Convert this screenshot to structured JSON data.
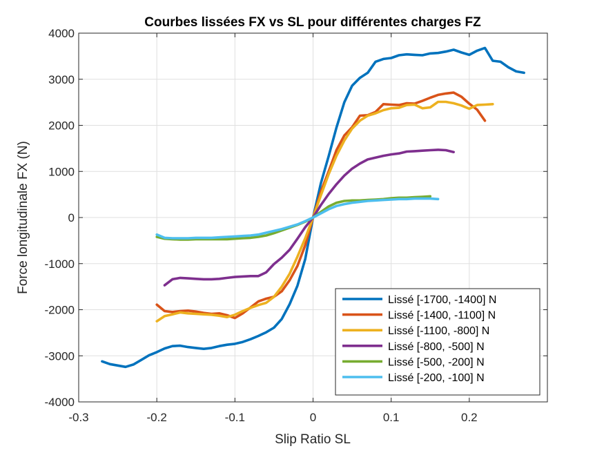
{
  "chart_data": {
    "type": "line",
    "title": "Courbes lissées FX vs SL pour différentes charges FZ",
    "xlabel": "Slip Ratio SL",
    "ylabel": "Force longitudinale FX (N)",
    "xlim": [
      -0.3,
      0.3
    ],
    "ylim": [
      -4000,
      4000
    ],
    "xticks": [
      -0.3,
      -0.2,
      -0.1,
      0,
      0.1,
      0.2
    ],
    "yticks": [
      -4000,
      -3000,
      -2000,
      -1000,
      0,
      1000,
      2000,
      3000,
      4000
    ],
    "xtick_labels": [
      "-0.3",
      "-0.2",
      "-0.1",
      "0",
      "0.1",
      "0.2"
    ],
    "ytick_labels": [
      "-4000",
      "-3000",
      "-2000",
      "-1000",
      "0",
      "1000",
      "2000",
      "3000",
      "4000"
    ],
    "grid": true,
    "legend_position": "bottom-right",
    "series": [
      {
        "name": "Lissé [-1700, -1400] N",
        "color": "#0072BD",
        "points": [
          [
            -0.27,
            -3120
          ],
          [
            -0.26,
            -3180
          ],
          [
            -0.25,
            -3210
          ],
          [
            -0.24,
            -3240
          ],
          [
            -0.23,
            -3190
          ],
          [
            -0.22,
            -3090
          ],
          [
            -0.21,
            -2990
          ],
          [
            -0.2,
            -2920
          ],
          [
            -0.19,
            -2840
          ],
          [
            -0.18,
            -2790
          ],
          [
            -0.17,
            -2780
          ],
          [
            -0.16,
            -2810
          ],
          [
            -0.15,
            -2830
          ],
          [
            -0.14,
            -2850
          ],
          [
            -0.13,
            -2830
          ],
          [
            -0.12,
            -2790
          ],
          [
            -0.11,
            -2760
          ],
          [
            -0.1,
            -2740
          ],
          [
            -0.09,
            -2700
          ],
          [
            -0.08,
            -2640
          ],
          [
            -0.07,
            -2570
          ],
          [
            -0.06,
            -2490
          ],
          [
            -0.05,
            -2390
          ],
          [
            -0.04,
            -2200
          ],
          [
            -0.03,
            -1880
          ],
          [
            -0.02,
            -1480
          ],
          [
            -0.01,
            -900
          ],
          [
            0,
            0
          ],
          [
            0.01,
            740
          ],
          [
            0.02,
            1330
          ],
          [
            0.03,
            1950
          ],
          [
            0.04,
            2500
          ],
          [
            0.05,
            2860
          ],
          [
            0.06,
            3030
          ],
          [
            0.07,
            3140
          ],
          [
            0.08,
            3380
          ],
          [
            0.09,
            3440
          ],
          [
            0.1,
            3460
          ],
          [
            0.11,
            3520
          ],
          [
            0.12,
            3540
          ],
          [
            0.13,
            3530
          ],
          [
            0.14,
            3520
          ],
          [
            0.15,
            3560
          ],
          [
            0.16,
            3570
          ],
          [
            0.17,
            3600
          ],
          [
            0.18,
            3640
          ],
          [
            0.19,
            3580
          ],
          [
            0.2,
            3530
          ],
          [
            0.21,
            3620
          ],
          [
            0.22,
            3680
          ],
          [
            0.23,
            3400
          ],
          [
            0.24,
            3380
          ],
          [
            0.25,
            3260
          ],
          [
            0.26,
            3170
          ],
          [
            0.27,
            3140
          ]
        ]
      },
      {
        "name": "Lissé [-1400, -1100] N",
        "color": "#D95319",
        "points": [
          [
            -0.2,
            -1890
          ],
          [
            -0.19,
            -2030
          ],
          [
            -0.18,
            -2050
          ],
          [
            -0.17,
            -2030
          ],
          [
            -0.16,
            -2020
          ],
          [
            -0.15,
            -2040
          ],
          [
            -0.14,
            -2070
          ],
          [
            -0.13,
            -2090
          ],
          [
            -0.12,
            -2080
          ],
          [
            -0.11,
            -2120
          ],
          [
            -0.1,
            -2180
          ],
          [
            -0.09,
            -2080
          ],
          [
            -0.08,
            -1950
          ],
          [
            -0.07,
            -1820
          ],
          [
            -0.06,
            -1760
          ],
          [
            -0.05,
            -1720
          ],
          [
            -0.04,
            -1600
          ],
          [
            -0.03,
            -1360
          ],
          [
            -0.02,
            -1050
          ],
          [
            -0.01,
            -600
          ],
          [
            0,
            0
          ],
          [
            0.01,
            560
          ],
          [
            0.02,
            1000
          ],
          [
            0.03,
            1460
          ],
          [
            0.04,
            1780
          ],
          [
            0.05,
            1960
          ],
          [
            0.06,
            2210
          ],
          [
            0.07,
            2220
          ],
          [
            0.08,
            2290
          ],
          [
            0.09,
            2460
          ],
          [
            0.1,
            2450
          ],
          [
            0.11,
            2440
          ],
          [
            0.12,
            2480
          ],
          [
            0.13,
            2470
          ],
          [
            0.14,
            2530
          ],
          [
            0.15,
            2600
          ],
          [
            0.16,
            2660
          ],
          [
            0.17,
            2690
          ],
          [
            0.18,
            2710
          ],
          [
            0.19,
            2620
          ],
          [
            0.2,
            2470
          ],
          [
            0.21,
            2340
          ],
          [
            0.22,
            2100
          ]
        ]
      },
      {
        "name": "Lissé [-1100, -800] N",
        "color": "#EDB120",
        "points": [
          [
            -0.2,
            -2250
          ],
          [
            -0.19,
            -2140
          ],
          [
            -0.18,
            -2100
          ],
          [
            -0.17,
            -2060
          ],
          [
            -0.16,
            -2080
          ],
          [
            -0.15,
            -2090
          ],
          [
            -0.14,
            -2100
          ],
          [
            -0.13,
            -2110
          ],
          [
            -0.12,
            -2130
          ],
          [
            -0.11,
            -2160
          ],
          [
            -0.1,
            -2110
          ],
          [
            -0.09,
            -2030
          ],
          [
            -0.08,
            -1960
          ],
          [
            -0.07,
            -1900
          ],
          [
            -0.06,
            -1850
          ],
          [
            -0.05,
            -1720
          ],
          [
            -0.04,
            -1500
          ],
          [
            -0.03,
            -1220
          ],
          [
            -0.02,
            -850
          ],
          [
            -0.01,
            -450
          ],
          [
            0,
            0
          ],
          [
            0.01,
            480
          ],
          [
            0.02,
            940
          ],
          [
            0.03,
            1340
          ],
          [
            0.04,
            1670
          ],
          [
            0.05,
            1930
          ],
          [
            0.06,
            2100
          ],
          [
            0.07,
            2210
          ],
          [
            0.08,
            2260
          ],
          [
            0.09,
            2330
          ],
          [
            0.1,
            2370
          ],
          [
            0.11,
            2380
          ],
          [
            0.12,
            2440
          ],
          [
            0.13,
            2450
          ],
          [
            0.14,
            2370
          ],
          [
            0.15,
            2390
          ],
          [
            0.16,
            2510
          ],
          [
            0.17,
            2510
          ],
          [
            0.18,
            2480
          ],
          [
            0.19,
            2430
          ],
          [
            0.2,
            2360
          ],
          [
            0.21,
            2440
          ],
          [
            0.22,
            2450
          ],
          [
            0.23,
            2460
          ]
        ]
      },
      {
        "name": "Lissé [-800, -500] N",
        "color": "#7E2F8E",
        "points": [
          [
            -0.19,
            -1470
          ],
          [
            -0.18,
            -1340
          ],
          [
            -0.17,
            -1310
          ],
          [
            -0.16,
            -1320
          ],
          [
            -0.15,
            -1330
          ],
          [
            -0.14,
            -1340
          ],
          [
            -0.13,
            -1340
          ],
          [
            -0.12,
            -1330
          ],
          [
            -0.11,
            -1310
          ],
          [
            -0.1,
            -1290
          ],
          [
            -0.09,
            -1280
          ],
          [
            -0.08,
            -1270
          ],
          [
            -0.07,
            -1270
          ],
          [
            -0.06,
            -1190
          ],
          [
            -0.05,
            -1010
          ],
          [
            -0.04,
            -870
          ],
          [
            -0.03,
            -700
          ],
          [
            -0.02,
            -460
          ],
          [
            -0.01,
            -210
          ],
          [
            0,
            0
          ],
          [
            0.01,
            270
          ],
          [
            0.02,
            510
          ],
          [
            0.03,
            720
          ],
          [
            0.04,
            910
          ],
          [
            0.05,
            1060
          ],
          [
            0.06,
            1170
          ],
          [
            0.07,
            1260
          ],
          [
            0.08,
            1300
          ],
          [
            0.09,
            1340
          ],
          [
            0.1,
            1370
          ],
          [
            0.11,
            1390
          ],
          [
            0.12,
            1430
          ],
          [
            0.13,
            1440
          ],
          [
            0.14,
            1450
          ],
          [
            0.15,
            1460
          ],
          [
            0.16,
            1470
          ],
          [
            0.17,
            1460
          ],
          [
            0.18,
            1420
          ]
        ]
      },
      {
        "name": "Lissé [-500, -200] N",
        "color": "#77AC30",
        "points": [
          [
            -0.2,
            -420
          ],
          [
            -0.19,
            -460
          ],
          [
            -0.18,
            -470
          ],
          [
            -0.17,
            -480
          ],
          [
            -0.16,
            -480
          ],
          [
            -0.15,
            -470
          ],
          [
            -0.14,
            -470
          ],
          [
            -0.13,
            -470
          ],
          [
            -0.12,
            -470
          ],
          [
            -0.11,
            -470
          ],
          [
            -0.1,
            -460
          ],
          [
            -0.09,
            -450
          ],
          [
            -0.08,
            -440
          ],
          [
            -0.07,
            -420
          ],
          [
            -0.06,
            -390
          ],
          [
            -0.05,
            -340
          ],
          [
            -0.04,
            -280
          ],
          [
            -0.03,
            -220
          ],
          [
            -0.02,
            -160
          ],
          [
            -0.01,
            -90
          ],
          [
            0,
            0
          ],
          [
            0.01,
            120
          ],
          [
            0.02,
            240
          ],
          [
            0.03,
            320
          ],
          [
            0.04,
            360
          ],
          [
            0.05,
            370
          ],
          [
            0.06,
            370
          ],
          [
            0.07,
            380
          ],
          [
            0.08,
            390
          ],
          [
            0.09,
            400
          ],
          [
            0.1,
            420
          ],
          [
            0.11,
            430
          ],
          [
            0.12,
            430
          ],
          [
            0.13,
            440
          ],
          [
            0.14,
            450
          ],
          [
            0.15,
            460
          ]
        ]
      },
      {
        "name": "Lissé [-200, -100] N",
        "color": "#4DBEEE",
        "points": [
          [
            -0.2,
            -370
          ],
          [
            -0.19,
            -440
          ],
          [
            -0.18,
            -450
          ],
          [
            -0.17,
            -450
          ],
          [
            -0.16,
            -450
          ],
          [
            -0.15,
            -440
          ],
          [
            -0.14,
            -440
          ],
          [
            -0.13,
            -440
          ],
          [
            -0.12,
            -430
          ],
          [
            -0.11,
            -420
          ],
          [
            -0.1,
            -410
          ],
          [
            -0.09,
            -400
          ],
          [
            -0.08,
            -390
          ],
          [
            -0.07,
            -370
          ],
          [
            -0.06,
            -330
          ],
          [
            -0.05,
            -290
          ],
          [
            -0.04,
            -250
          ],
          [
            -0.03,
            -200
          ],
          [
            -0.02,
            -150
          ],
          [
            -0.01,
            -80
          ],
          [
            0,
            0
          ],
          [
            0.01,
            90
          ],
          [
            0.02,
            180
          ],
          [
            0.03,
            250
          ],
          [
            0.04,
            290
          ],
          [
            0.05,
            320
          ],
          [
            0.06,
            340
          ],
          [
            0.07,
            360
          ],
          [
            0.08,
            370
          ],
          [
            0.09,
            380
          ],
          [
            0.1,
            390
          ],
          [
            0.11,
            400
          ],
          [
            0.12,
            400
          ],
          [
            0.13,
            410
          ],
          [
            0.14,
            410
          ],
          [
            0.15,
            410
          ],
          [
            0.16,
            400
          ]
        ]
      }
    ]
  }
}
